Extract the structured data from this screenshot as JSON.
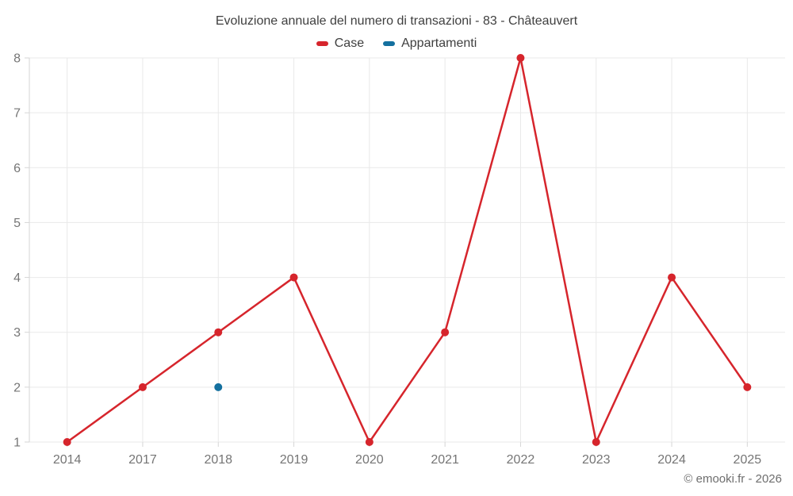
{
  "title": "Evoluzione annuale del numero di transazioni - 83 - Châteauvert",
  "watermark": "© emooki.fr - 2026",
  "legend": [
    {
      "label": "Case",
      "color": "#d6252c"
    },
    {
      "label": "Appartamenti",
      "color": "#14709f"
    }
  ],
  "colors": {
    "case_red": "#d6252c",
    "apartment_blue": "#14709f",
    "grid": "#e9e9e9",
    "tick": "#d6d6d6",
    "axis_label": "#757575",
    "title_text": "#3f3f3f",
    "watermark_text": "#6e6e6e"
  },
  "chart_data": {
    "type": "line",
    "title": "Evoluzione annuale del numero di transazioni - 83 - Châteauvert",
    "categories": [
      "2014",
      "2017",
      "2018",
      "2019",
      "2020",
      "2021",
      "2022",
      "2023",
      "2024",
      "2025"
    ],
    "series": [
      {
        "name": "Case",
        "color": "#d6252c",
        "values": [
          1,
          2,
          3,
          4,
          1,
          3,
          8,
          1,
          4,
          2
        ]
      },
      {
        "name": "Appartamenti",
        "color": "#14709f",
        "values": [
          null,
          null,
          2,
          null,
          null,
          null,
          null,
          null,
          null,
          null
        ]
      }
    ],
    "xlabel": "",
    "ylabel": "",
    "ylim": [
      1,
      8
    ],
    "yticks": [
      1,
      2,
      3,
      4,
      5,
      6,
      7,
      8
    ],
    "grid": true,
    "legend_position": "top"
  }
}
